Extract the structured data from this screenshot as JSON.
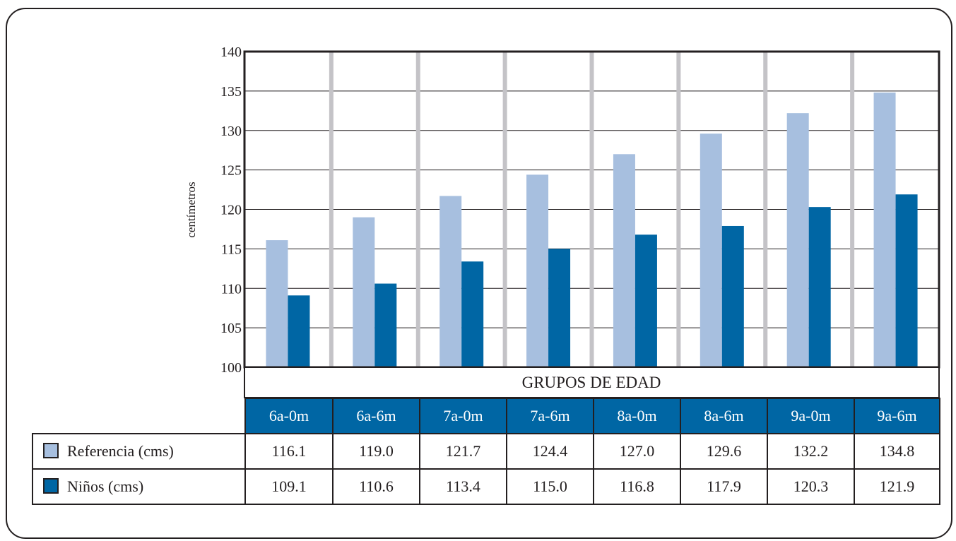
{
  "colors": {
    "referencia": "#a7bfdf",
    "ninos": "#0066a4",
    "grid": "#c4c3c7",
    "header": "#0066a4"
  },
  "chart_data": {
    "type": "bar",
    "ylabel": "centímetros",
    "xlabel": "GRUPOS DE EDAD",
    "ylim": [
      100,
      140
    ],
    "yticks": [
      100,
      105,
      110,
      115,
      120,
      125,
      130,
      135,
      140
    ],
    "grid": true,
    "categories": [
      "6a-0m",
      "6a-6m",
      "7a-0m",
      "7a-6m",
      "8a-0m",
      "8a-6m",
      "9a-0m",
      "9a-6m"
    ],
    "series": [
      {
        "name": "Referencia (cms)",
        "values": [
          116.1,
          119.0,
          121.7,
          124.4,
          127.0,
          129.6,
          132.2,
          134.8
        ]
      },
      {
        "name": "Niños (cms)",
        "values": [
          109.1,
          110.6,
          113.4,
          115.0,
          116.8,
          117.9,
          120.3,
          121.9
        ]
      }
    ],
    "table_values": [
      [
        "116.1",
        "119.0",
        "121.7",
        "124.4",
        "127.0",
        "129.6",
        "132.2",
        "134.8"
      ],
      [
        "109.1",
        "110.6",
        "113.4",
        "115.0",
        "116.8",
        "117.9",
        "120.3",
        "121.9"
      ]
    ]
  }
}
